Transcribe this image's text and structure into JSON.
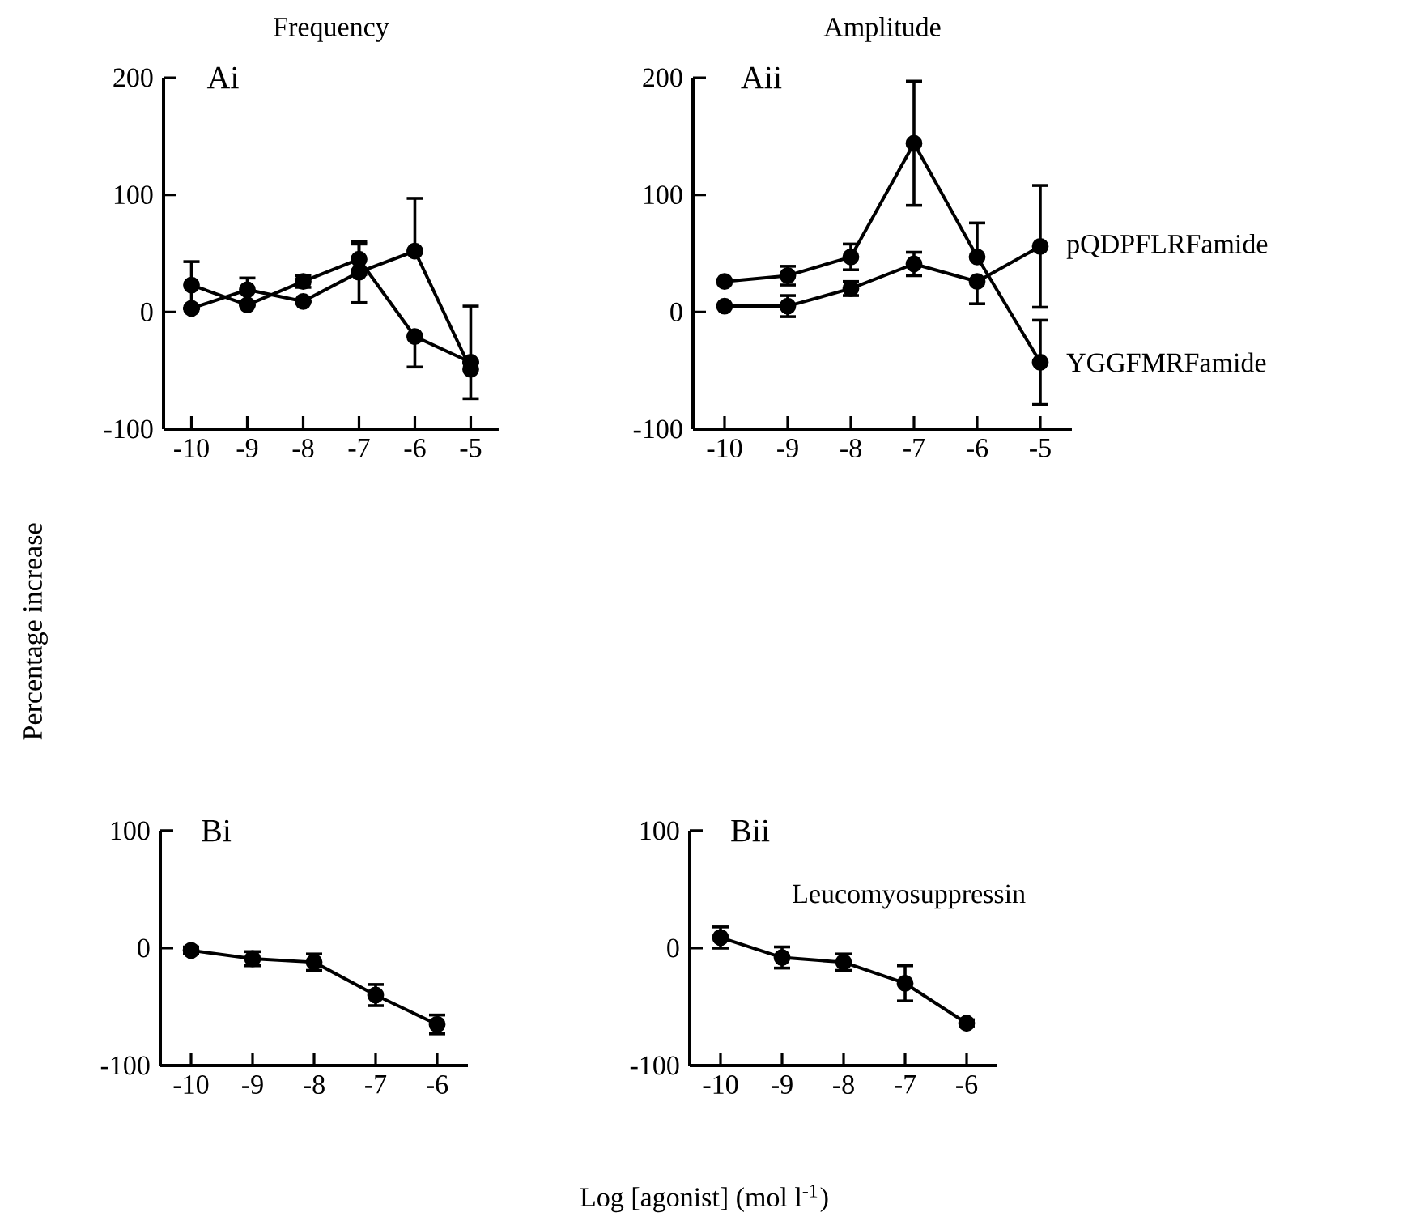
{
  "chart_data": [
    {
      "type": "line",
      "title": "Frequency",
      "ylabel": "Percentage increase",
      "annotations": [
        "Ai"
      ],
      "x": [
        -10,
        -9,
        -8,
        -7,
        -6,
        -5
      ],
      "xlim": [
        -10.5,
        -4.5
      ],
      "ylim": [
        -100,
        200
      ],
      "xticks": [
        -10,
        -9,
        -8,
        -7,
        -6,
        -5
      ],
      "yticks": [
        -100,
        0,
        100,
        200
      ],
      "marker": "circle",
      "series": [
        {
          "color": "#000000",
          "values": [
            23,
            6,
            26,
            45,
            -21,
            -43
          ],
          "errors": [
            20,
            null,
            5,
            13,
            [
              -47,
              -21
            ],
            null
          ]
        },
        {
          "color": "#000000",
          "values": [
            3,
            19,
            9,
            34,
            52,
            -49
          ],
          "errors": [
            null,
            10,
            null,
            26,
            [
              52,
              97
            ],
            [
              -74,
              5
            ]
          ]
        }
      ]
    },
    {
      "type": "line",
      "title": "Amplitude",
      "annotations": [
        "Aii"
      ],
      "x": [
        -10,
        -9,
        -8,
        -7,
        -6,
        -5
      ],
      "xlim": [
        -10.5,
        -4.5
      ],
      "ylim": [
        -100,
        200
      ],
      "xticks": [
        -10,
        -9,
        -8,
        -7,
        -6,
        -5
      ],
      "yticks": [
        -100,
        0,
        100,
        200
      ],
      "marker": "circle",
      "series": [
        {
          "name": "YGGFMRFamide",
          "color": "#000000",
          "values": [
            26,
            31,
            47,
            144,
            47,
            -43
          ],
          "errors": [
            null,
            8,
            11,
            53,
            [
              47,
              76
            ],
            36
          ]
        },
        {
          "name": "pQDPFLRFamide",
          "color": "#000000",
          "values": [
            5,
            5,
            20,
            41,
            26,
            56
          ],
          "errors": [
            null,
            9,
            6,
            10,
            [
              7,
              26
            ],
            52
          ]
        }
      ]
    },
    {
      "type": "line",
      "xlabel": "Log [agonist] (mol l$^{-1}$)",
      "annotations": [
        "Bi"
      ],
      "x": [
        -10,
        -9,
        -8,
        -7,
        -6
      ],
      "xlim": [
        -10.5,
        -5.5
      ],
      "ylim": [
        -100,
        100
      ],
      "xticks": [
        -10,
        -9,
        -8,
        -7,
        -6
      ],
      "yticks": [
        -100,
        0,
        100
      ],
      "marker": "circle",
      "series": [
        {
          "color": "#000000",
          "values": [
            -2,
            -9,
            -12,
            -40,
            -65
          ],
          "errors": [
            3,
            6,
            7,
            9,
            8
          ]
        }
      ]
    },
    {
      "type": "line",
      "annotations": [
        "Bii"
      ],
      "x": [
        -10,
        -9,
        -8,
        -7,
        -6
      ],
      "xlim": [
        -10.5,
        -5.5
      ],
      "ylim": [
        -100,
        100
      ],
      "xticks": [
        -10,
        -9,
        -8,
        -7,
        -6
      ],
      "yticks": [
        -100,
        0,
        100
      ],
      "marker": "circle",
      "series": [
        {
          "name": "Leucomyosuppressin",
          "color": "#000000",
          "values": [
            9,
            -8,
            -12,
            -30,
            -64
          ],
          "errors": [
            9,
            9,
            7,
            15,
            3
          ]
        }
      ]
    }
  ]
}
